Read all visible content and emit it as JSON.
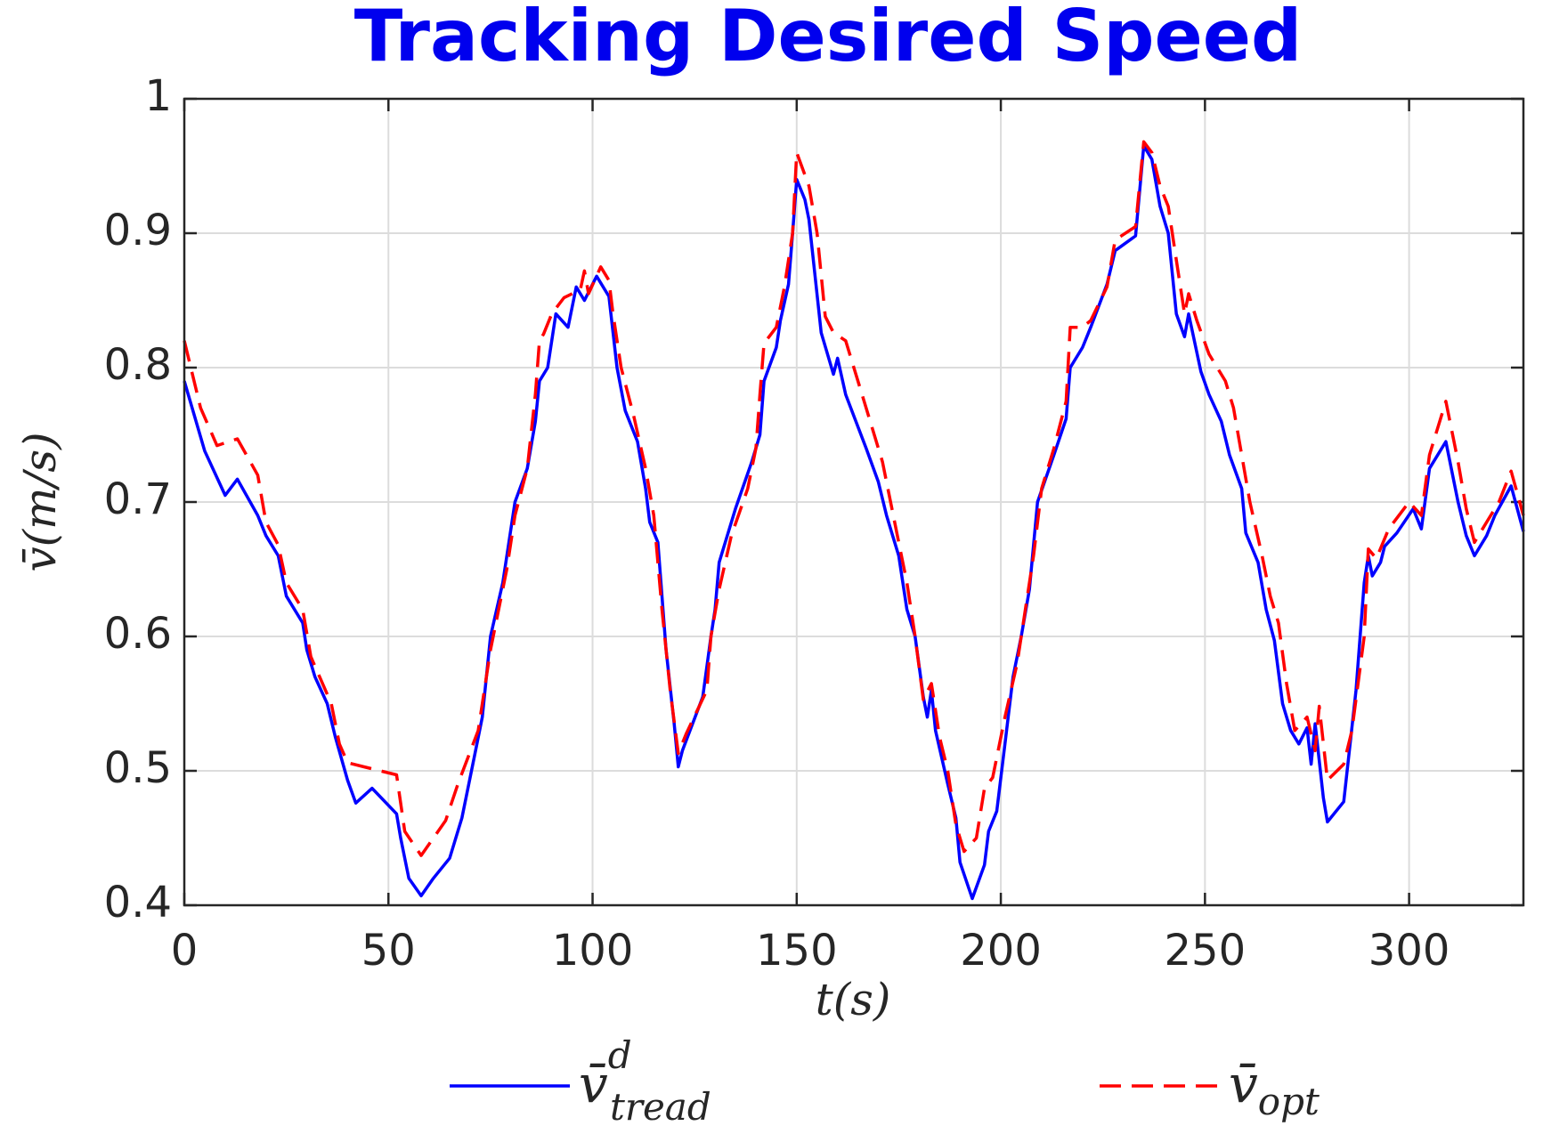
{
  "chart_data": {
    "type": "line",
    "title": "Tracking Desired Speed",
    "xlabel": "t(s)",
    "ylabel": "v̄(m/s)",
    "xlim": [
      0,
      328
    ],
    "ylim": [
      0.4,
      1
    ],
    "xticks": [
      0,
      50,
      100,
      150,
      200,
      250,
      300
    ],
    "yticks": [
      0.4,
      0.5,
      0.6,
      0.7,
      0.8,
      0.9,
      1
    ],
    "grid": true,
    "legend": "bottom",
    "series": [
      {
        "name": "v̄",
        "superscript": "d",
        "subscript": "tread",
        "color": "#0000ff",
        "dash": false,
        "x": [
          0,
          5,
          10,
          13,
          18,
          20,
          23,
          25,
          29,
          30,
          32,
          35,
          37,
          40,
          42,
          46,
          52,
          53,
          55,
          58,
          61,
          65,
          68,
          71,
          73,
          75,
          78,
          81,
          84,
          86,
          87,
          89,
          91,
          94,
          96,
          98,
          101,
          104,
          106,
          108,
          111,
          113,
          114,
          116,
          118,
          120,
          121,
          122,
          127,
          129,
          130,
          131,
          135,
          139,
          141,
          142,
          145,
          146,
          148,
          149,
          150,
          152,
          153,
          156,
          159,
          160,
          162,
          167,
          170,
          172,
          175,
          177,
          179,
          181,
          182,
          183,
          184,
          187,
          189,
          190,
          193,
          196,
          197,
          199,
          201,
          203,
          205,
          207,
          209,
          213,
          216,
          217,
          220,
          222,
          226,
          228,
          233,
          235,
          237,
          239,
          241,
          243,
          245,
          246,
          249,
          251,
          254,
          256,
          259,
          260,
          263,
          265,
          267,
          269,
          271,
          273,
          275,
          276,
          277,
          279,
          280,
          284,
          287,
          289,
          290,
          291,
          293,
          294,
          297,
          301,
          303,
          305,
          309,
          312,
          314,
          316,
          319,
          321,
          325,
          328
        ],
        "values": [
          0.79,
          0.738,
          0.705,
          0.717,
          0.69,
          0.675,
          0.66,
          0.63,
          0.61,
          0.59,
          0.57,
          0.55,
          0.525,
          0.493,
          0.476,
          0.487,
          0.468,
          0.45,
          0.42,
          0.407,
          0.42,
          0.435,
          0.465,
          0.51,
          0.54,
          0.6,
          0.64,
          0.7,
          0.725,
          0.76,
          0.79,
          0.8,
          0.84,
          0.83,
          0.86,
          0.85,
          0.868,
          0.853,
          0.8,
          0.768,
          0.745,
          0.71,
          0.685,
          0.67,
          0.59,
          0.535,
          0.503,
          0.515,
          0.555,
          0.6,
          0.62,
          0.655,
          0.695,
          0.73,
          0.75,
          0.79,
          0.815,
          0.835,
          0.862,
          0.9,
          0.94,
          0.925,
          0.91,
          0.826,
          0.795,
          0.807,
          0.78,
          0.74,
          0.715,
          0.69,
          0.66,
          0.62,
          0.6,
          0.555,
          0.54,
          0.56,
          0.53,
          0.49,
          0.465,
          0.432,
          0.405,
          0.43,
          0.455,
          0.47,
          0.52,
          0.57,
          0.6,
          0.635,
          0.7,
          0.735,
          0.762,
          0.8,
          0.815,
          0.83,
          0.862,
          0.887,
          0.898,
          0.965,
          0.955,
          0.92,
          0.9,
          0.84,
          0.823,
          0.84,
          0.797,
          0.78,
          0.76,
          0.735,
          0.71,
          0.677,
          0.655,
          0.62,
          0.597,
          0.55,
          0.53,
          0.52,
          0.532,
          0.505,
          0.535,
          0.48,
          0.462,
          0.477,
          0.56,
          0.64,
          0.66,
          0.645,
          0.655,
          0.667,
          0.677,
          0.695,
          0.68,
          0.725,
          0.745,
          0.7,
          0.675,
          0.66,
          0.675,
          0.69,
          0.712,
          0.678
        ]
      },
      {
        "name": "v̄",
        "subscript": "opt",
        "color": "#ff0000",
        "dash": true,
        "x": [
          0,
          4,
          8,
          13,
          18,
          20,
          23,
          25,
          29,
          31,
          36,
          38,
          40,
          44,
          52,
          54,
          58,
          64,
          67,
          72,
          75,
          79,
          81,
          84,
          86,
          87,
          88,
          90,
          93,
          97,
          98,
          99,
          102,
          104,
          105,
          107,
          110,
          113,
          115,
          117,
          119,
          121,
          123,
          128,
          129,
          131,
          134,
          138,
          140,
          141,
          142,
          145,
          147,
          149,
          150,
          153,
          155,
          157,
          159,
          162,
          166,
          171,
          175,
          177,
          179,
          181,
          183,
          185,
          187,
          189,
          191,
          194,
          196,
          198,
          201,
          204,
          206,
          208,
          210,
          213,
          216,
          217,
          220,
          222,
          226,
          228,
          233,
          235,
          237,
          239,
          241,
          243,
          245,
          246,
          248,
          251,
          255,
          257,
          259,
          261,
          264,
          266,
          268,
          270,
          272,
          275,
          277,
          278,
          280,
          284,
          286,
          289,
          290,
          292,
          295,
          300,
          303,
          305,
          309,
          312,
          314,
          316,
          319,
          322,
          325,
          328
        ],
        "values": [
          0.82,
          0.77,
          0.742,
          0.747,
          0.72,
          0.685,
          0.668,
          0.64,
          0.62,
          0.585,
          0.55,
          0.52,
          0.506,
          0.503,
          0.497,
          0.455,
          0.437,
          0.463,
          0.49,
          0.53,
          0.59,
          0.65,
          0.69,
          0.725,
          0.78,
          0.82,
          0.825,
          0.84,
          0.852,
          0.858,
          0.872,
          0.855,
          0.875,
          0.865,
          0.84,
          0.8,
          0.765,
          0.725,
          0.69,
          0.62,
          0.56,
          0.513,
          0.528,
          0.56,
          0.6,
          0.635,
          0.675,
          0.71,
          0.74,
          0.78,
          0.818,
          0.83,
          0.86,
          0.9,
          0.96,
          0.935,
          0.9,
          0.838,
          0.826,
          0.82,
          0.78,
          0.73,
          0.67,
          0.64,
          0.6,
          0.553,
          0.565,
          0.525,
          0.5,
          0.46,
          0.44,
          0.45,
          0.487,
          0.495,
          0.54,
          0.58,
          0.62,
          0.66,
          0.71,
          0.74,
          0.775,
          0.83,
          0.83,
          0.835,
          0.86,
          0.895,
          0.905,
          0.968,
          0.96,
          0.935,
          0.92,
          0.88,
          0.84,
          0.855,
          0.835,
          0.81,
          0.79,
          0.77,
          0.735,
          0.7,
          0.66,
          0.63,
          0.61,
          0.565,
          0.53,
          0.54,
          0.515,
          0.548,
          0.493,
          0.505,
          0.53,
          0.6,
          0.665,
          0.658,
          0.68,
          0.7,
          0.69,
          0.735,
          0.775,
          0.73,
          0.695,
          0.67,
          0.685,
          0.7,
          0.723,
          0.69
        ]
      }
    ]
  }
}
